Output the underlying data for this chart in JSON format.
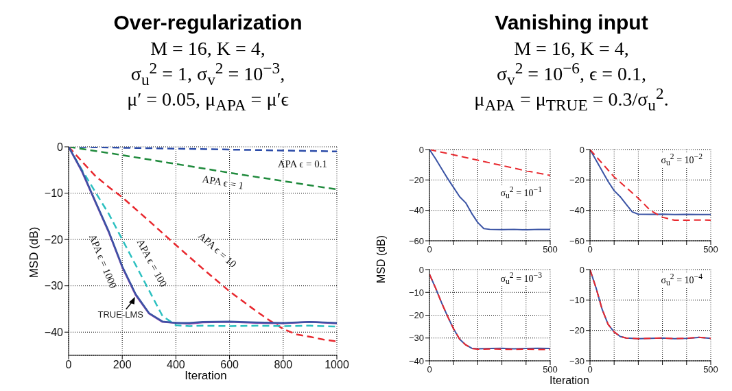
{
  "chart_data": [
    {
      "type": "line",
      "title": "Over-regularization",
      "subtitle": "M = 16, K = 4,\nσ$_{u}$$^{2}$ = 1, σ$_{v}$$^{2}$ = 10$^{−3}$,\nμ′ = 0.05, μ$_{APA}$ = μ′ϵ",
      "xlabel": "Iteration",
      "ylabel": "MSD (dB)",
      "xlim": [
        0,
        1000
      ],
      "xticks": [
        0,
        200,
        400,
        600,
        800,
        1000
      ],
      "ylim": [
        -45,
        0
      ],
      "yticks": [
        -40,
        -30,
        -20,
        -10,
        0
      ],
      "grid": true,
      "line_style": "dashed",
      "series": [
        {
          "name": "APA ϵ = 0.1",
          "color": "#2b4ba8",
          "x": [
            0,
            200,
            400,
            600,
            800,
            1000
          ],
          "values": [
            0,
            -0.2,
            -0.4,
            -0.6,
            -0.8,
            -1
          ]
        },
        {
          "name": "APA ϵ = 1",
          "color": "#1f8a3c",
          "x": [
            0,
            200,
            400,
            600,
            800,
            1000
          ],
          "values": [
            0,
            -1.8,
            -3.7,
            -5.6,
            -7.4,
            -9.2
          ]
        },
        {
          "name": "APA ϵ = 10",
          "color": "#e8282e",
          "x": [
            0,
            50,
            100,
            150,
            200,
            300,
            400,
            500,
            600,
            700,
            750,
            800,
            850,
            900,
            950,
            1000
          ],
          "values": [
            0,
            -3.2,
            -6.3,
            -8.7,
            -10.9,
            -16,
            -21.2,
            -26.3,
            -31.2,
            -35.5,
            -37.5,
            -39.3,
            -40.5,
            -41,
            -41.6,
            -42
          ]
        },
        {
          "name": "APA ϵ = 100",
          "color": "#2cc0c0",
          "x": [
            0,
            50,
            100,
            150,
            200,
            250,
            300,
            350,
            400,
            450,
            500,
            600,
            700,
            800,
            900,
            1000
          ],
          "values": [
            0,
            -5,
            -9.8,
            -14.5,
            -20,
            -25.5,
            -31,
            -36.5,
            -38.5,
            -38.7,
            -38.6,
            -38.7,
            -38.6,
            -38.7,
            -38.6,
            -38.8
          ]
        },
        {
          "name": "APA ϵ = 1000",
          "color": "#8e44ad",
          "line_style": "solid",
          "x": [
            0,
            50,
            100,
            150,
            200,
            250,
            300,
            350,
            400,
            450,
            500,
            600,
            700,
            800,
            900,
            1000
          ],
          "values": [
            0,
            -5.4,
            -12,
            -18.5,
            -26,
            -32,
            -36,
            -37.8,
            -38,
            -38.2,
            -37.9,
            -37.8,
            -38,
            -38.1,
            -37.8,
            -38.1
          ]
        },
        {
          "name": "TRUE-LMS",
          "color": "#3a53a4",
          "line_style": "solid",
          "x": [
            0,
            50,
            100,
            150,
            200,
            250,
            300,
            350,
            400,
            450,
            500,
            600,
            700,
            800,
            900,
            1000
          ],
          "values": [
            0,
            -5.2,
            -11.8,
            -18.3,
            -25.8,
            -31.8,
            -35.9,
            -37.7,
            -38,
            -38,
            -37.8,
            -37.7,
            -37.9,
            -38,
            -37.8,
            -38
          ]
        }
      ]
    },
    {
      "type": "line",
      "title": "Vanishing input",
      "subtitle": "M = 16, K = 4,\nσ$_{v}$$^{2}$ = 10$^{−6}$, ϵ = 0.1,\nμ$_{APA}$ = μ$_{TRUE}$ = 0.3/σ$_{u}$$^{2}$.",
      "ylabel": "MSD (dB)",
      "xlim": [
        0,
        500
      ],
      "xticks": [
        0,
        {
          "value": 100,
          "label": null
        },
        {
          "value": 200,
          "label": null
        },
        {
          "value": 300,
          "label": null
        },
        {
          "value": 400,
          "label": null
        },
        500
      ],
      "ylim": [
        -60,
        0
      ],
      "yticks": [
        -60,
        -40,
        -20,
        0
      ],
      "grid": true,
      "annotations": [
        "σ$_{u}$$^{2}$ = 10$^{−1}$"
      ],
      "series": [
        {
          "color": "#e8282e",
          "line_style": "dashed",
          "x": [
            0,
            100,
            200,
            300,
            400,
            500
          ],
          "values": [
            0,
            -3.5,
            -7,
            -10.5,
            -14,
            -17
          ]
        },
        {
          "color": "#3a53a4",
          "line_style": "solid",
          "x": [
            0,
            25,
            50,
            75,
            100,
            125,
            150,
            175,
            200,
            225,
            250,
            300,
            350,
            400,
            450,
            500
          ],
          "values": [
            0,
            -6,
            -12.5,
            -19,
            -25,
            -31,
            -35,
            -42,
            -48,
            -52,
            -52.5,
            -52.7,
            -52.5,
            -52.8,
            -52.5,
            -52.6
          ]
        }
      ]
    },
    {
      "type": "line",
      "xlim": [
        0,
        500
      ],
      "xticks": [
        0,
        {
          "value": 100,
          "label": null
        },
        {
          "value": 200,
          "label": null
        },
        {
          "value": 300,
          "label": null
        },
        {
          "value": 400,
          "label": null
        },
        500
      ],
      "ylim": [
        -60,
        0
      ],
      "yticks": [
        -60,
        -40,
        -20,
        0
      ],
      "grid": true,
      "annotations": [
        "σ$_{u}$$^{2}$ = 10$^{−2}$"
      ],
      "series": [
        {
          "color": "#3a53a4",
          "line_style": "solid",
          "x": [
            0,
            25,
            50,
            75,
            100,
            125,
            150,
            175,
            200,
            250,
            300,
            350,
            400,
            450,
            500
          ],
          "values": [
            0,
            -7,
            -14,
            -21,
            -27,
            -31,
            -36,
            -41,
            -42.5,
            -42.6,
            -42.5,
            -42.8,
            -42.6,
            -42.7,
            -42.8
          ]
        },
        {
          "color": "#e8282e",
          "line_style": "dashed",
          "x": [
            0,
            50,
            100,
            150,
            200,
            250,
            300,
            350,
            400,
            450,
            500
          ],
          "values": [
            0,
            -9,
            -18,
            -25,
            -32,
            -40,
            -44.5,
            -46.5,
            -46.5,
            -46.3,
            -46.5
          ]
        }
      ]
    },
    {
      "type": "line",
      "xlim": [
        0,
        500
      ],
      "xticks": [
        0,
        {
          "value": 100,
          "label": null
        },
        {
          "value": 200,
          "label": null
        },
        {
          "value": 300,
          "label": null
        },
        {
          "value": 400,
          "label": null
        },
        500
      ],
      "ylim": [
        -40,
        0
      ],
      "yticks": [
        -40,
        -30,
        -20,
        -10,
        0
      ],
      "grid": true,
      "annotations": [
        "σ$_{u}$$^{2}$ = 10$^{−3}$"
      ],
      "series": [
        {
          "color": "#3a53a4",
          "line_style": "solid",
          "x": [
            0,
            25,
            50,
            75,
            100,
            125,
            150,
            175,
            200,
            250,
            300,
            350,
            400,
            450,
            500
          ],
          "values": [
            -2,
            -8,
            -14.5,
            -20.5,
            -26,
            -30.5,
            -33,
            -34.5,
            -34.7,
            -34.6,
            -34.5,
            -34.7,
            -34.6,
            -34.5,
            -34.6
          ]
        },
        {
          "color": "#e8282e",
          "line_style": "dashed",
          "x": [
            0,
            25,
            50,
            75,
            100,
            125,
            150,
            175,
            200,
            250,
            300,
            350,
            400,
            450,
            500
          ],
          "values": [
            -2,
            -8,
            -14.5,
            -20.5,
            -26,
            -30.5,
            -33,
            -34.6,
            -34.9,
            -34.8,
            -34.9,
            -35,
            -34.9,
            -35,
            -35
          ]
        }
      ]
    },
    {
      "type": "line",
      "xlabel": "Iteration",
      "xlim": [
        0,
        500
      ],
      "xticks": [
        0,
        {
          "value": 100,
          "label": null
        },
        {
          "value": 200,
          "label": null
        },
        {
          "value": 300,
          "label": null
        },
        {
          "value": 400,
          "label": null
        },
        500
      ],
      "ylim": [
        -30,
        0
      ],
      "yticks": [
        -30,
        -20,
        -10,
        0
      ],
      "grid": true,
      "annotations": [
        "σ$_{u}$$^{2}$ = 10$^{−4}$"
      ],
      "series": [
        {
          "color": "#3a53a4",
          "line_style": "solid",
          "x": [
            0,
            25,
            50,
            75,
            100,
            125,
            150,
            200,
            250,
            300,
            350,
            400,
            450,
            500
          ],
          "values": [
            0,
            -6,
            -13,
            -18,
            -20.5,
            -22,
            -22.5,
            -22.7,
            -22.6,
            -22.5,
            -22.7,
            -22.6,
            -22.3,
            -22.6
          ]
        },
        {
          "color": "#e8282e",
          "line_style": "dashed",
          "x": [
            0,
            25,
            50,
            75,
            100,
            125,
            150,
            200,
            250,
            300,
            350,
            400,
            450,
            500
          ],
          "values": [
            0,
            -6,
            -13,
            -18,
            -20.5,
            -22,
            -22.5,
            -22.7,
            -22.6,
            -22.5,
            -22.7,
            -22.6,
            -22.3,
            -22.6
          ]
        }
      ]
    }
  ]
}
